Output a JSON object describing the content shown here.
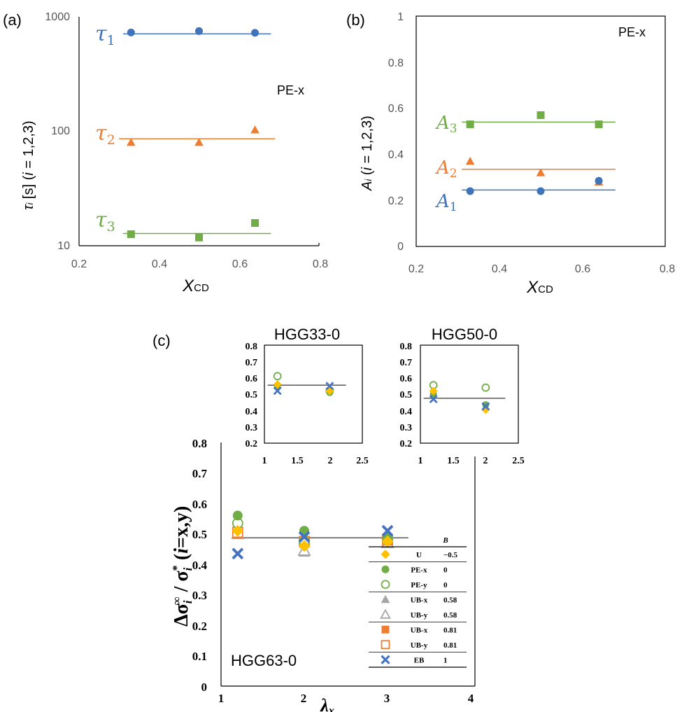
{
  "colors": {
    "blue": "#3f74bb",
    "orange": "#ed7d31",
    "green": "#70ad47",
    "gold": "#ffc000",
    "gray": "#a5a5a5",
    "dark_blue": "#4472c4"
  },
  "chart_data": [
    {
      "type": "scatter",
      "panel": "(a)",
      "xlabel_main": "X",
      "xlabel_sub": "CD",
      "ylabel": {
        "a": "τ",
        "b": "i",
        "c": " [s] (",
        "d": "i",
        "e": " = 1,2,3)"
      },
      "annotation": "PE-x",
      "y_scale": "log",
      "xlim": [
        0.2,
        0.8
      ],
      "ylim": [
        10,
        1000
      ],
      "x_ticks": [
        "0.2",
        "0.4",
        "0.6",
        "0.8"
      ],
      "y_ticks": [
        "10",
        "100",
        "1000"
      ],
      "series": [
        {
          "label_main": "τ",
          "label_sub": "1",
          "color": "#3f74bb",
          "marker": "circle",
          "x": [
            0.33,
            0.5,
            0.64
          ],
          "y": [
            730,
            750,
            725
          ],
          "fit": {
            "x": [
              0.31,
              0.68
            ],
            "y": [
              710,
              710
            ]
          }
        },
        {
          "label_main": "τ",
          "label_sub": "2",
          "color": "#ed7d31",
          "marker": "triangle",
          "x": [
            0.33,
            0.5,
            0.64
          ],
          "y": [
            80,
            80,
            103
          ],
          "fit": {
            "x": [
              0.3,
              0.69
            ],
            "y": [
              86,
              86
            ]
          }
        },
        {
          "label_main": "τ",
          "label_sub": "3",
          "color": "#70ad47",
          "marker": "square",
          "x": [
            0.33,
            0.5,
            0.64
          ],
          "y": [
            12.6,
            11.8,
            15.8
          ],
          "fit": {
            "x": [
              0.31,
              0.68
            ],
            "y": [
              12.8,
              12.8
            ]
          }
        }
      ]
    },
    {
      "type": "scatter",
      "panel": "(b)",
      "xlabel_main": "X",
      "xlabel_sub": "CD",
      "ylabel": {
        "a": "A",
        "b": "i",
        "c": " (",
        "d": "i",
        "e": " = 1,2,3)"
      },
      "annotation": "PE-x",
      "xlim": [
        0.2,
        0.8
      ],
      "ylim": [
        0,
        1
      ],
      "x_ticks": [
        "0.2",
        "0.4",
        "0.6",
        "0.8"
      ],
      "y_ticks": [
        "0",
        "0.2",
        "0.4",
        "0.6",
        "0.8",
        "1"
      ],
      "series": [
        {
          "label_main": "A",
          "label_sub": "3",
          "color": "#70ad47",
          "marker": "square",
          "x": [
            0.33,
            0.5,
            0.64
          ],
          "y": [
            0.53,
            0.57,
            0.53
          ],
          "fit": {
            "x": [
              0.31,
              0.68
            ],
            "y": [
              0.54,
              0.54
            ]
          }
        },
        {
          "label_main": "A",
          "label_sub": "2",
          "color": "#ed7d31",
          "marker": "triangle",
          "x": [
            0.33,
            0.5,
            0.64
          ],
          "y": [
            0.37,
            0.32,
            0.28
          ],
          "fit": {
            "x": [
              0.31,
              0.68
            ],
            "y": [
              0.335,
              0.335
            ]
          }
        },
        {
          "label_main": "A",
          "label_sub": "1",
          "color": "#3f74bb",
          "marker": "circle",
          "x": [
            0.33,
            0.5,
            0.64
          ],
          "y": [
            0.24,
            0.24,
            0.285
          ],
          "fit": {
            "x": [
              0.31,
              0.68
            ],
            "y": [
              0.245,
              0.245
            ]
          }
        }
      ]
    },
    {
      "type": "scatter",
      "panel": "(c)",
      "xlabel": "λ",
      "xlabel_sub": "x",
      "ylabel": {
        "a": "Δσ",
        "b": "i",
        "c": "∞",
        "d": " / σ",
        "e": "i",
        "f": "*",
        "g": "  (",
        "h": "i",
        "k": "=x,y)"
      },
      "annotation": "HGG63-0",
      "xlim": [
        1,
        4
      ],
      "ylim": [
        0,
        0.8
      ],
      "x_ticks": [
        "1",
        "2",
        "3",
        "4"
      ],
      "y_ticks": [
        "0",
        "0.1",
        "0.2",
        "0.3",
        "0.4",
        "0.5",
        "0.6",
        "0.7",
        "0.8"
      ],
      "ref_line": {
        "x": [
          1.2,
          3.25
        ],
        "y": [
          0.487,
          0.487
        ]
      },
      "legend": {
        "header": "B",
        "entries": [
          {
            "name": "U",
            "value": "−0.5",
            "marker": "diamond",
            "color": "#ffc000",
            "filled": true
          },
          {
            "name": "PE-x",
            "value": "0",
            "marker": "circle",
            "color": "#70ad47",
            "filled": true
          },
          {
            "name": "PE-y",
            "value": "0",
            "marker": "circle",
            "color": "#70ad47",
            "filled": false
          },
          {
            "name": "UB-x",
            "value": "0.58",
            "marker": "triangle",
            "color": "#a5a5a5",
            "filled": true
          },
          {
            "name": "UB-y",
            "value": "0.58",
            "marker": "triangle",
            "color": "#a5a5a5",
            "filled": false
          },
          {
            "name": "UB-x",
            "value": "0.81",
            "marker": "square",
            "color": "#ed7d31",
            "filled": true
          },
          {
            "name": "UB-y",
            "value": "0.81",
            "marker": "square",
            "color": "#ed7d31",
            "filled": false
          },
          {
            "name": "EB",
            "value": "1",
            "marker": "cross",
            "color": "#4472c4",
            "filled": true
          }
        ]
      },
      "series": [
        {
          "name": "U",
          "x": [
            1.2,
            2,
            3
          ],
          "y": [
            0.51,
            0.46,
            0.475
          ]
        },
        {
          "name": "PE-x",
          "x": [
            1.2,
            2,
            3
          ],
          "y": [
            0.56,
            0.51,
            0.49
          ]
        },
        {
          "name": "PE-y",
          "x": [
            1.2,
            2,
            3
          ],
          "y": [
            0.535,
            0.475,
            0.48
          ]
        },
        {
          "name": "UB-x",
          "x": [
            1.2,
            2,
            3
          ],
          "y": [
            0.51,
            0.44,
            0.48
          ]
        },
        {
          "name": "UB-y",
          "x": [
            1.2,
            2,
            3
          ],
          "y": [
            0.5,
            0.445,
            0.47
          ]
        },
        {
          "name": "UB-x",
          "x": [
            1.2,
            2,
            3
          ],
          "y": [
            0.5,
            0.47,
            0.48
          ]
        },
        {
          "name": "UB-y",
          "x": [
            1.2,
            2,
            3
          ],
          "y": [
            0.505,
            0.475,
            0.48
          ]
        },
        {
          "name": "EB",
          "x": [
            1.2,
            2,
            3
          ],
          "y": [
            0.435,
            0.49,
            0.51
          ]
        }
      ]
    },
    {
      "type": "scatter",
      "panel": "inset",
      "title": "HGG33-0",
      "xlim": [
        1,
        2.5
      ],
      "ylim": [
        0.2,
        0.8
      ],
      "x_ticks": [
        "1",
        "1.5",
        "2",
        "2.5"
      ],
      "y_ticks": [
        "0.2",
        "0.3",
        "0.4",
        "0.5",
        "0.6",
        "0.7",
        "0.8"
      ],
      "ref_line": {
        "x": [
          1.05,
          2.25
        ],
        "y": [
          0.555,
          0.555
        ]
      },
      "series": [
        {
          "name": "U",
          "x": [
            1.2,
            2
          ],
          "y": [
            0.56,
            0.52
          ]
        },
        {
          "name": "PE-x",
          "x": [
            1.2,
            2
          ],
          "y": [
            0.55,
            0.51
          ]
        },
        {
          "name": "PE-y",
          "x": [
            1.2,
            2
          ],
          "y": [
            0.61,
            0.52
          ]
        },
        {
          "name": "EB",
          "x": [
            1.2,
            2
          ],
          "y": [
            0.52,
            0.55
          ]
        }
      ]
    },
    {
      "type": "scatter",
      "panel": "inset",
      "title": "HGG50-0",
      "xlim": [
        1,
        2.5
      ],
      "ylim": [
        0.2,
        0.8
      ],
      "x_ticks": [
        "1",
        "1.5",
        "2",
        "2.5"
      ],
      "y_ticks": [
        "0.2",
        "0.3",
        "0.4",
        "0.5",
        "0.6",
        "0.7",
        "0.8"
      ],
      "ref_line": {
        "x": [
          1.05,
          2.3
        ],
        "y": [
          0.475,
          0.475
        ]
      },
      "series": [
        {
          "name": "U",
          "x": [
            1.2,
            2
          ],
          "y": [
            0.52,
            0.405
          ]
        },
        {
          "name": "PE-x",
          "x": [
            1.2,
            2
          ],
          "y": [
            0.5,
            0.435
          ]
        },
        {
          "name": "PE-y",
          "x": [
            1.2,
            2
          ],
          "y": [
            0.555,
            0.54
          ]
        },
        {
          "name": "EB",
          "x": [
            1.2,
            2
          ],
          "y": [
            0.47,
            0.425
          ]
        }
      ]
    }
  ]
}
